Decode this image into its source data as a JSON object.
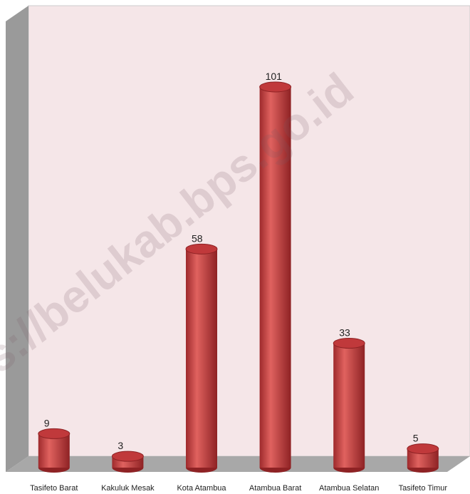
{
  "chart_data": {
    "type": "bar",
    "watermark": "s://belukab.bps.go.id",
    "categories": [
      "Tasifeto Barat",
      "Kakuluk Mesak",
      "Kota Atambua",
      "Atambua Barat",
      "Atambua Selatan",
      "Tasifeto Timur"
    ],
    "values": [
      9,
      3,
      58,
      101,
      33,
      5
    ],
    "color": "#c0393b"
  }
}
